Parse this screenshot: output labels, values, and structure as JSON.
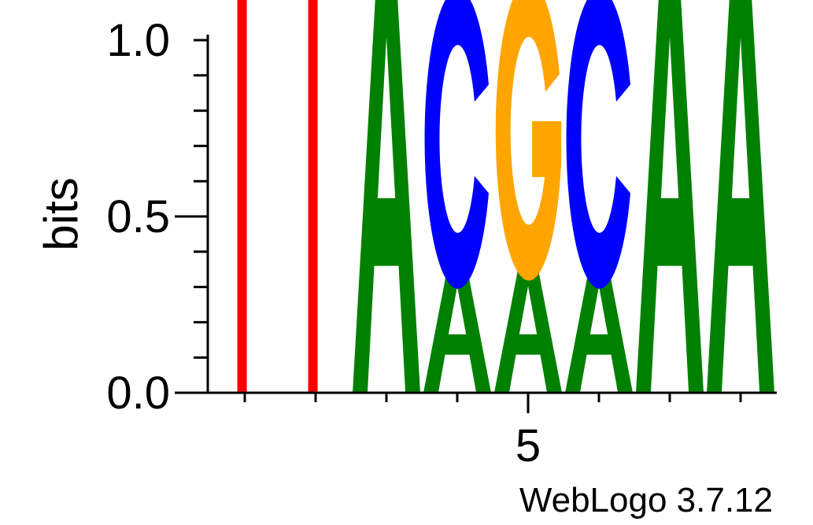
{
  "chart_data": {
    "type": "sequence-logo",
    "ylabel": "bits",
    "ylim": [
      0,
      1.2
    ],
    "yticks": [
      {
        "value": 0.0,
        "label": "0.0"
      },
      {
        "value": 0.5,
        "label": "0.5"
      },
      {
        "value": 1.0,
        "label": "1.0"
      }
    ],
    "xticks": [
      {
        "position": 5,
        "label": "5"
      }
    ],
    "positions": [
      1,
      2,
      3,
      4,
      5,
      6,
      7,
      8
    ],
    "columns": [
      {
        "position": 1,
        "letters": [
          {
            "letter": "T",
            "bits": 1.2
          }
        ]
      },
      {
        "position": 2,
        "letters": [
          {
            "letter": "T",
            "bits": 1.2
          }
        ]
      },
      {
        "position": 3,
        "letters": [
          {
            "letter": "A",
            "bits": 1.2
          }
        ]
      },
      {
        "position": 4,
        "letters": [
          {
            "letter": "A",
            "bits": 0.36
          },
          {
            "letter": "C",
            "bits": 0.72
          }
        ]
      },
      {
        "position": 5,
        "letters": [
          {
            "letter": "A",
            "bits": 0.36
          },
          {
            "letter": "G",
            "bits": 0.72
          }
        ]
      },
      {
        "position": 6,
        "letters": [
          {
            "letter": "A",
            "bits": 0.36
          },
          {
            "letter": "C",
            "bits": 0.72
          }
        ]
      },
      {
        "position": 7,
        "letters": [
          {
            "letter": "A",
            "bits": 1.2
          }
        ]
      },
      {
        "position": 8,
        "letters": [
          {
            "letter": "A",
            "bits": 1.2
          }
        ]
      }
    ],
    "colors": {
      "A": "#008000",
      "C": "#0000ff",
      "G": "#ffa500",
      "T": "#ff0000"
    }
  },
  "footer": {
    "credit": "WebLogo 3.7.12"
  }
}
